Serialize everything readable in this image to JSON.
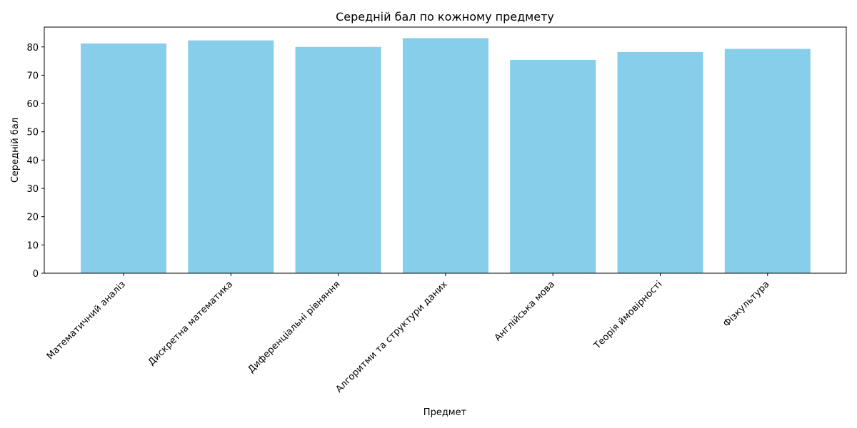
{
  "chart_data": {
    "type": "bar",
    "title": "Середній бал по кожному предмету",
    "xlabel": "Предмет",
    "ylabel": "Середній бал",
    "categories": [
      "Математичний аналіз",
      "Дискретна математика",
      "Диференціальні рівняння",
      "Алгоритми та структури даних",
      "Англійська мова",
      "Теорія ймовірності",
      "Фізкультура"
    ],
    "values": [
      81.2,
      82.3,
      80.0,
      83.1,
      75.4,
      78.2,
      79.3
    ],
    "ylim": [
      0,
      87
    ],
    "yticks": [
      0,
      10,
      20,
      30,
      40,
      50,
      60,
      70,
      80
    ],
    "bar_color": "#87ceeb",
    "grid": false,
    "legend": "none"
  }
}
